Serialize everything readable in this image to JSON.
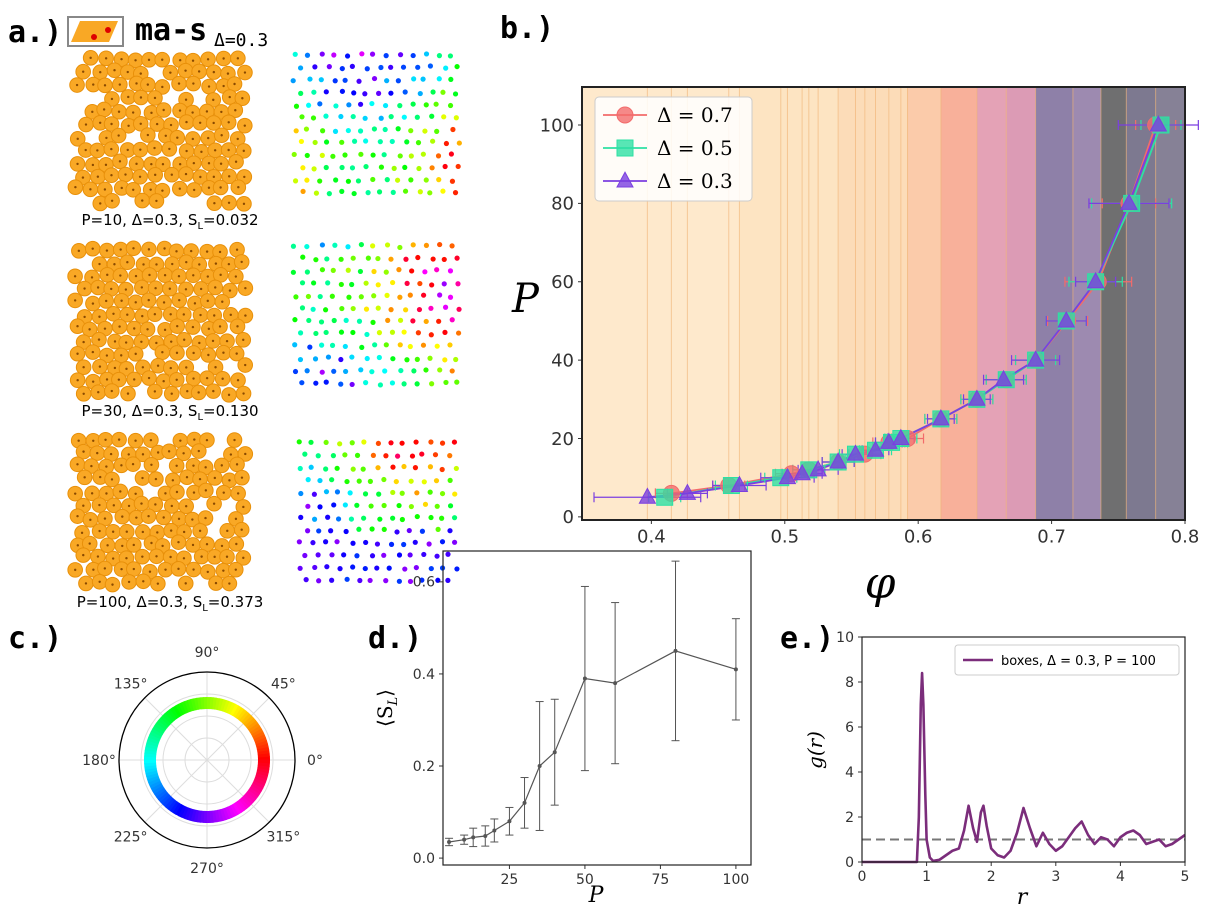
{
  "panel_a": {
    "label": "a.)",
    "model": "ma-s",
    "model_sub": "Δ=0.3",
    "captions": [
      {
        "text": "P=10, Δ=0.3, S",
        "sub": "L",
        "tail": "=0.032"
      },
      {
        "text": "P=30, Δ=0.3, S",
        "sub": "L",
        "tail": "=0.130"
      },
      {
        "text": "P=100, Δ=0.3, S",
        "sub": "L",
        "tail": "=0.373"
      }
    ]
  },
  "chart_data": [
    {
      "type": "errorbar-line",
      "label": "b.)",
      "xlabel": "φ",
      "ylabel": "P",
      "xlim": [
        0.348,
        0.8
      ],
      "ylim": [
        -0.8,
        109.7
      ],
      "xticks": [
        0.4,
        0.5,
        0.6,
        0.7,
        0.8
      ],
      "yticks": [
        0,
        20,
        40,
        60,
        80,
        100
      ],
      "legend": "upper left",
      "band_edges": [
        0.348,
        0.397,
        0.415,
        0.427,
        0.458,
        0.466,
        0.497,
        0.502,
        0.513,
        0.518,
        0.525,
        0.54,
        0.553,
        0.56,
        0.568,
        0.578,
        0.587,
        0.592,
        0.617,
        0.644,
        0.666,
        0.688,
        0.716,
        0.737,
        0.756,
        0.778,
        0.8
      ],
      "band_colors": [
        "#fee9cc",
        "#fee9cc",
        "#fee9cc",
        "#fee9cc",
        "#fee9cc",
        "#fde4c2",
        "#fde4c2",
        "#fde4c2",
        "#fde4c2",
        "#fde4c2",
        "#fde4c2",
        "#fcdcb8",
        "#fcdcb8",
        "#fcdcb8",
        "#fcdcb8",
        "#fcdcb8",
        "#fcdcb8",
        "#fbcbaa",
        "#f8b09a",
        "#e4a2b6",
        "#dc9bb5",
        "#8e80a8",
        "#9d8ab0",
        "#6f6f70",
        "#7d7990",
        "#868196"
      ],
      "series": [
        {
          "name": "Δ = 0.7",
          "color": "#f26b6b",
          "marker": "circle",
          "x": [
            0.415,
            0.458,
            0.505,
            0.518,
            0.54,
            0.56,
            0.578,
            0.592,
            0.617,
            0.644,
            0.666,
            0.688,
            0.712,
            0.735,
            0.758,
            0.778
          ],
          "values": [
            6,
            8,
            11,
            12,
            14,
            16,
            19,
            20,
            25,
            30,
            35,
            40,
            50,
            60,
            80,
            100
          ],
          "xerr": [
            0.012,
            0.012,
            0.012,
            0.012,
            0.012,
            0.012,
            0.012,
            0.012,
            0.012,
            0.012,
            0.015,
            0.015,
            0.015,
            0.025,
            0.02,
            0.015
          ]
        },
        {
          "name": "Δ = 0.5",
          "color": "#2ee0a4",
          "marker": "square",
          "x": [
            0.41,
            0.46,
            0.497,
            0.518,
            0.54,
            0.553,
            0.568,
            0.58,
            0.587,
            0.617,
            0.644,
            0.666,
            0.688,
            0.711,
            0.733,
            0.76,
            0.782
          ],
          "values": [
            5,
            8,
            10,
            12,
            14,
            16,
            17,
            19,
            20,
            25,
            30,
            35,
            40,
            50,
            60,
            80,
            100
          ],
          "xerr": [
            0.012,
            0.012,
            0.012,
            0.012,
            0.012,
            0.012,
            0.012,
            0.012,
            0.012,
            0.012,
            0.012,
            0.015,
            0.015,
            0.015,
            0.02,
            0.03,
            0.015
          ]
        },
        {
          "name": "Δ = 0.3",
          "color": "#7b3fe0",
          "marker": "triangle",
          "x": [
            0.397,
            0.427,
            0.466,
            0.502,
            0.513,
            0.525,
            0.54,
            0.553,
            0.568,
            0.578,
            0.587,
            0.617,
            0.644,
            0.664,
            0.688,
            0.711,
            0.733,
            0.758,
            0.78
          ],
          "values": [
            5,
            6,
            8,
            10,
            11,
            12,
            14,
            16,
            17,
            19,
            20,
            25,
            30,
            35,
            40,
            50,
            60,
            80,
            100
          ],
          "xerr": [
            0.04,
            0.015,
            0.02,
            0.02,
            0.015,
            0.015,
            0.012,
            0.01,
            0.01,
            0.01,
            0.01,
            0.01,
            0.01,
            0.015,
            0.018,
            0.015,
            0.015,
            0.03,
            0.03
          ]
        }
      ]
    },
    {
      "type": "polar",
      "label": "c.)",
      "thetaticks": [
        {
          "value": 0,
          "label": "0°"
        },
        {
          "value": 45,
          "label": "45°"
        },
        {
          "value": 90,
          "label": "90°"
        },
        {
          "value": 135,
          "label": "135°"
        },
        {
          "value": 180,
          "label": "180°"
        },
        {
          "value": 225,
          "label": "225°"
        },
        {
          "value": 270,
          "label": "270°"
        },
        {
          "value": 315,
          "label": "315°"
        }
      ]
    },
    {
      "type": "errorbar-line",
      "label": "d.)",
      "xlabel": "P",
      "ylabel": "⟨S",
      "ylabel_sub": "L",
      "ylabel_end": "⟩",
      "xlim": [
        3,
        105
      ],
      "ylim": [
        -0.015,
        0.667
      ],
      "xticks": [
        25,
        50,
        75,
        100
      ],
      "yticks": [
        {
          "value": 0,
          "label": "0.0"
        },
        0.2,
        0.4,
        0.6
      ],
      "x": [
        5,
        10,
        13,
        17,
        20,
        25,
        30,
        35,
        40,
        50,
        60,
        80,
        100
      ],
      "series": [
        {
          "color": "#555555",
          "values": [
            0.035,
            0.04,
            0.045,
            0.048,
            0.06,
            0.08,
            0.12,
            0.2,
            0.23,
            0.39,
            0.38,
            0.45,
            0.41
          ],
          "yerr": [
            0.008,
            0.01,
            0.02,
            0.022,
            0.025,
            0.03,
            0.055,
            0.14,
            0.115,
            0.2,
            0.175,
            0.195,
            0.11
          ]
        }
      ]
    },
    {
      "type": "line",
      "label": "e.)",
      "xlabel": "r",
      "ylabel": "g(r)",
      "xlim": [
        0,
        5
      ],
      "ylim": [
        0,
        10
      ],
      "xticks": [
        0,
        1,
        2,
        3,
        4,
        5
      ],
      "yticks": [
        0,
        2,
        4,
        6,
        8,
        10
      ],
      "hline": 1,
      "legend": "upper right",
      "series": [
        {
          "name": "boxes, Δ = 0.3, P = 100",
          "color": "#7b2d7b",
          "x": [
            0,
            0.85,
            0.88,
            0.91,
            0.93,
            0.95,
            0.98,
            1.0,
            1.05,
            1.1,
            1.2,
            1.3,
            1.4,
            1.5,
            1.58,
            1.65,
            1.72,
            1.78,
            1.84,
            1.88,
            1.93,
            2.0,
            2.1,
            2.2,
            2.3,
            2.4,
            2.5,
            2.6,
            2.7,
            2.8,
            2.9,
            3.0,
            3.1,
            3.2,
            3.3,
            3.4,
            3.5,
            3.6,
            3.7,
            3.8,
            3.9,
            4.0,
            4.1,
            4.2,
            4.3,
            4.4,
            4.5,
            4.6,
            4.7,
            4.8,
            4.9,
            5.0
          ],
          "values": [
            0,
            0,
            2,
            7,
            8.4,
            7,
            3,
            1,
            0.2,
            0.05,
            0.1,
            0.3,
            0.5,
            0.6,
            1.4,
            2.5,
            1.5,
            0.9,
            2.2,
            2.5,
            1.6,
            0.6,
            0.3,
            0.2,
            0.5,
            1.3,
            2.4,
            1.5,
            0.7,
            1.3,
            0.8,
            0.5,
            0.7,
            1.1,
            1.5,
            1.8,
            1.2,
            0.8,
            1.1,
            1.0,
            0.7,
            1.1,
            1.3,
            1.4,
            1.2,
            0.8,
            0.9,
            1.0,
            0.7,
            0.8,
            1.0,
            1.2
          ]
        }
      ]
    }
  ]
}
